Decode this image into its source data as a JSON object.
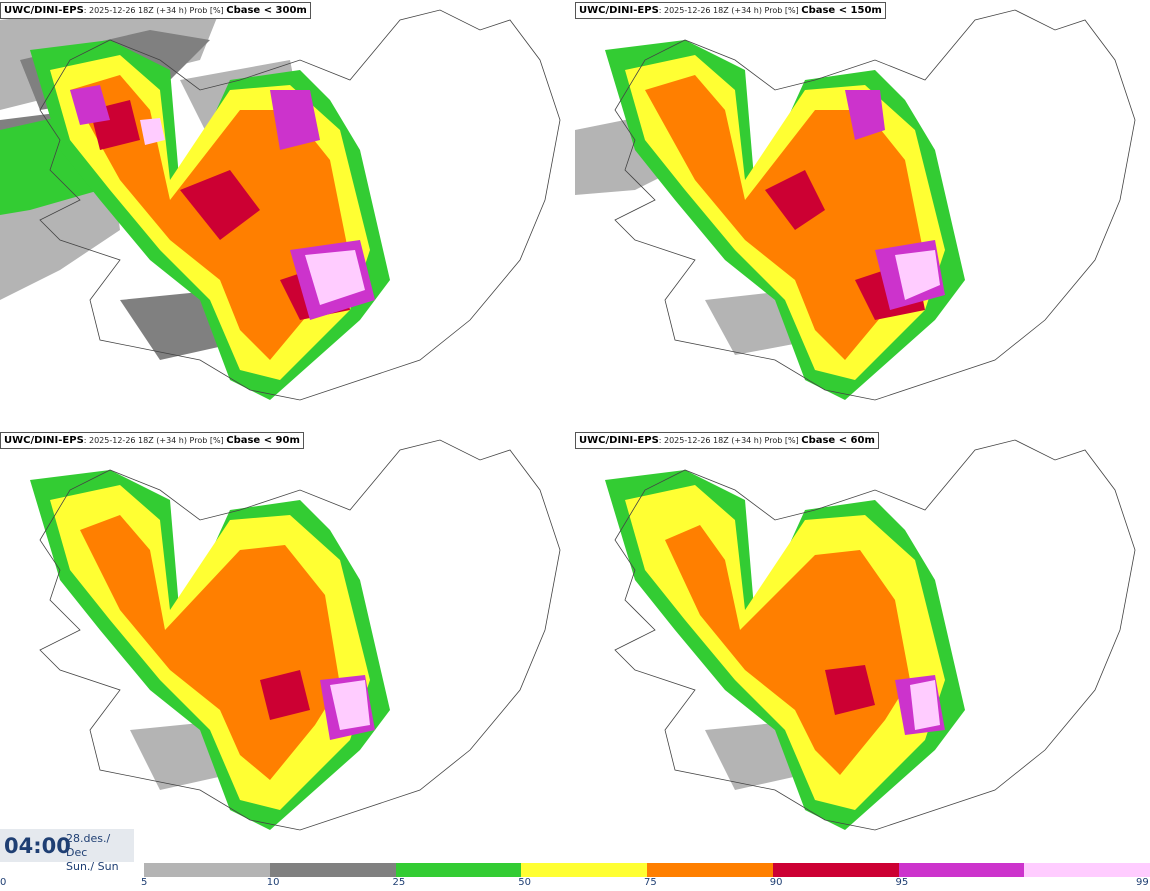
{
  "panels": [
    {
      "model": "UWC/DINI-EPS",
      "meta": ": 2025-12-26 18Z (+34 h) Prob [%] ",
      "param": "Cbase < 300m"
    },
    {
      "model": "UWC/DINI-EPS",
      "meta": ": 2025-12-26 18Z (+34 h) Prob [%] ",
      "param": "Cbase < 150m"
    },
    {
      "model": "UWC/DINI-EPS",
      "meta": ": 2025-12-26 18Z (+34 h) Prob [%] ",
      "param": "Cbase < 90m"
    },
    {
      "model": "UWC/DINI-EPS",
      "meta": ": 2025-12-26 18Z (+34 h) Prob [%] ",
      "param": "Cbase < 60m"
    }
  ],
  "time": {
    "hour": "04:00",
    "date": "28.des./ Dec",
    "day": "Sun./ Sun"
  },
  "colorbar": {
    "ticks": [
      "0",
      "5",
      "10",
      "25",
      "50",
      "75",
      "90",
      "95",
      "99"
    ],
    "colors": [
      "#b4b4b4",
      "#808080",
      "#33cc33",
      "#ffff33",
      "#ff7f00",
      "#cc0033",
      "#cc33cc",
      "#ffccff"
    ]
  }
}
